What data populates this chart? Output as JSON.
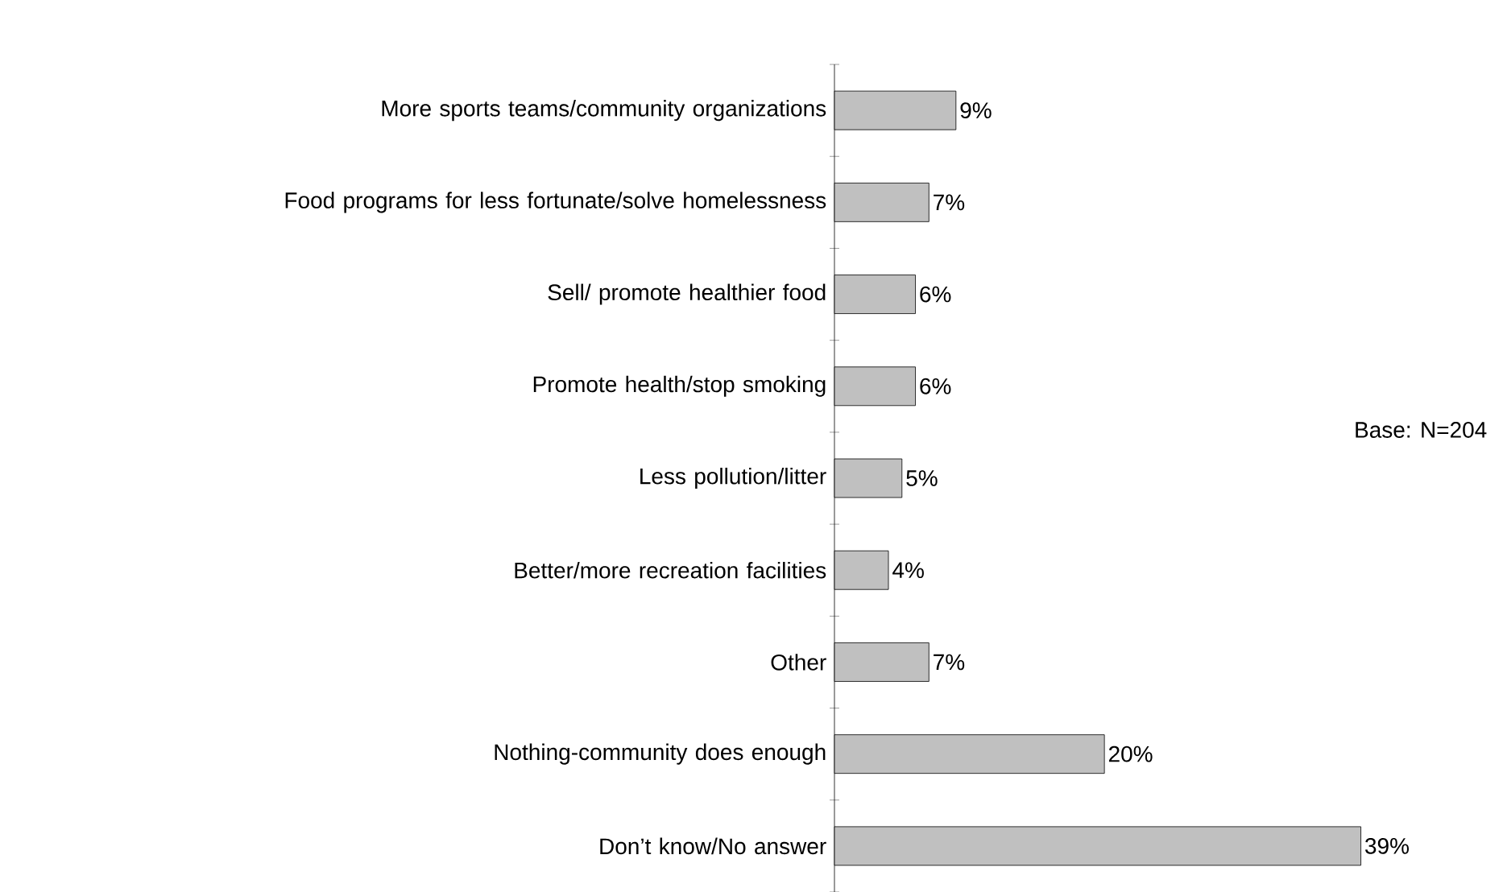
{
  "chart_data": {
    "type": "bar",
    "orientation": "horizontal",
    "categories": [
      "More sports teams/community organizations",
      "Food programs for less fortunate/solve homelessness",
      "Sell/ promote healthier food",
      "Promote health/stop smoking",
      "Less pollution/litter",
      "Better/more recreation facilities",
      "Other",
      "Nothing-community does enough",
      "Don’t know/No answer"
    ],
    "values": [
      9,
      7,
      6,
      6,
      5,
      4,
      7,
      20,
      39
    ],
    "value_labels": [
      "9%",
      "7%",
      "6%",
      "6%",
      "5%",
      "4%",
      "7%",
      "20%",
      "39%"
    ],
    "color": "#c0c0c0",
    "annotations": [
      "Base: N=204"
    ]
  }
}
